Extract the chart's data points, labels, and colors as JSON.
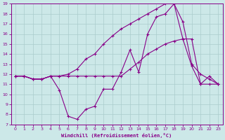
{
  "xlabel": "Windchill (Refroidissement éolien,°C)",
  "bg_color": "#cce8e8",
  "grid_color": "#aacccc",
  "line_color": "#880088",
  "xlim": [
    -0.5,
    23.5
  ],
  "ylim": [
    7,
    19
  ],
  "xticks": [
    0,
    1,
    2,
    3,
    4,
    5,
    6,
    7,
    8,
    9,
    10,
    11,
    12,
    13,
    14,
    15,
    16,
    17,
    18,
    19,
    20,
    21,
    22,
    23
  ],
  "yticks": [
    7,
    8,
    9,
    10,
    11,
    12,
    13,
    14,
    15,
    16,
    17,
    18,
    19
  ],
  "line1_x": [
    0,
    1,
    2,
    3,
    4,
    5,
    6,
    7,
    8,
    9,
    10,
    11,
    12,
    13,
    14,
    15,
    16,
    17,
    18,
    19,
    20,
    21,
    22,
    23
  ],
  "line1_y": [
    11.8,
    11.8,
    11.5,
    11.5,
    11.8,
    10.4,
    7.8,
    7.5,
    8.5,
    8.8,
    10.5,
    10.5,
    12.2,
    14.4,
    12.2,
    16.0,
    17.7,
    18.0,
    19.0,
    15.5,
    12.8,
    11.0,
    11.8,
    11.0
  ],
  "line2_x": [
    0,
    1,
    2,
    3,
    4,
    5,
    6,
    7,
    8,
    9,
    10,
    11,
    12,
    13,
    14,
    15,
    16,
    17,
    18,
    19,
    20,
    21,
    22,
    23
  ],
  "line2_y": [
    11.8,
    11.8,
    11.5,
    11.5,
    11.8,
    11.8,
    11.8,
    11.8,
    11.8,
    11.8,
    11.8,
    11.8,
    11.8,
    12.5,
    13.2,
    14.0,
    14.5,
    15.0,
    15.3,
    15.5,
    15.5,
    11.0,
    11.0,
    11.0
  ],
  "line3_x": [
    0,
    1,
    2,
    3,
    4,
    5,
    6,
    7,
    8,
    9,
    10,
    11,
    12,
    13,
    14,
    15,
    16,
    17,
    18,
    19,
    20,
    21,
    22,
    23
  ],
  "line3_y": [
    11.8,
    11.8,
    11.5,
    11.5,
    11.8,
    11.8,
    12.0,
    12.5,
    13.5,
    14.0,
    15.0,
    15.8,
    16.5,
    17.0,
    17.5,
    18.0,
    18.5,
    19.0,
    19.0,
    17.2,
    13.0,
    12.0,
    11.5,
    11.0
  ]
}
